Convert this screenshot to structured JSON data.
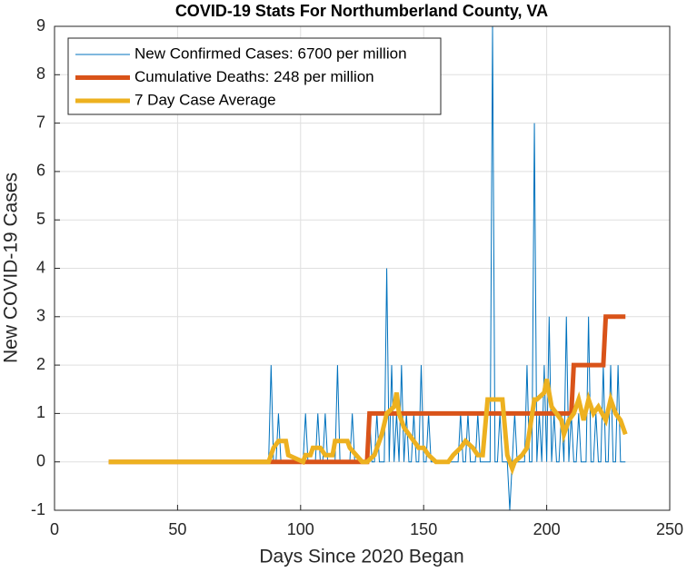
{
  "chart_data": {
    "type": "line",
    "title": "COVID-19 Stats For Northumberland County, VA",
    "x_label": "Days Since 2020 Began",
    "y_label": "New COVID-19 Cases",
    "xlim": [
      0,
      250
    ],
    "xticks": [
      0,
      50,
      100,
      150,
      200,
      250
    ],
    "ylim": [
      -1,
      9
    ],
    "yticks": [
      -1,
      0,
      1,
      2,
      3,
      4,
      5,
      6,
      7,
      8,
      9
    ],
    "grid": true,
    "legend": "upper-left",
    "series": [
      {
        "name": "New Confirmed Cases: 6700 per million",
        "color": "#0072bd",
        "width": 1,
        "x": [
          22,
          87,
          88,
          89,
          90,
          91,
          92,
          101,
          102,
          103,
          106,
          107,
          108,
          109,
          110,
          111,
          114,
          115,
          116,
          120,
          121,
          122,
          127,
          128,
          129,
          130,
          131,
          132,
          134,
          135,
          136,
          137,
          138,
          139,
          140,
          141,
          142,
          143,
          144,
          145,
          146,
          147,
          148,
          149,
          150,
          151,
          152,
          153,
          164,
          165,
          166,
          167,
          168,
          169,
          171,
          172,
          173,
          177,
          178,
          179,
          180,
          181,
          182,
          184,
          185,
          186,
          187,
          188,
          191,
          192,
          193,
          194,
          195,
          196,
          197,
          198,
          199,
          200,
          201,
          202,
          203,
          204,
          205,
          206,
          207,
          208,
          209,
          210,
          211,
          212,
          213,
          214,
          216,
          217,
          218,
          219,
          220,
          221,
          222,
          223,
          224,
          225,
          226,
          227,
          228,
          229,
          230,
          232
        ],
        "values": [
          0,
          0,
          2,
          0,
          0,
          1,
          0,
          0,
          1,
          0,
          0,
          1,
          0,
          0,
          1,
          0,
          0,
          2,
          0,
          0,
          1,
          0,
          0,
          1,
          0,
          0,
          1,
          0,
          0,
          4,
          0,
          2,
          0,
          1,
          0,
          2,
          0,
          1,
          0,
          0,
          1,
          0,
          0,
          2,
          0,
          0,
          1,
          0,
          0,
          1,
          0,
          0,
          1,
          0,
          0,
          1,
          0,
          0,
          9,
          0,
          0,
          1,
          0,
          0,
          -1,
          0,
          1,
          0,
          0,
          2,
          0,
          0,
          7,
          0,
          1,
          0,
          2,
          0,
          3,
          0,
          1,
          0,
          0,
          1,
          0,
          3,
          0,
          1,
          0,
          0,
          1,
          0,
          0,
          3,
          0,
          0,
          1,
          0,
          0,
          2,
          0,
          0,
          2,
          0,
          0,
          2,
          0,
          0
        ]
      },
      {
        "name": "Cumulative Deaths: 248 per million",
        "color": "#d95319",
        "width": 5,
        "x": [
          22,
          127,
          128,
          210,
          211,
          223,
          224,
          232
        ],
        "values": [
          0,
          0,
          1,
          1,
          2,
          2,
          3,
          3
        ]
      },
      {
        "name": "7 Day Case Average",
        "color": "#edb120",
        "width": 5,
        "x": [
          22,
          87,
          89,
          91,
          94,
          95,
          101,
          102,
          104,
          105,
          108,
          110,
          113,
          114,
          119,
          120,
          125,
          127,
          130,
          133,
          135,
          138,
          139,
          140,
          142,
          144,
          146,
          148,
          150,
          152,
          155,
          160,
          162,
          165,
          167,
          170,
          172,
          174,
          176,
          177,
          182,
          184,
          186,
          187,
          190,
          192,
          195,
          196,
          199,
          200,
          202,
          204,
          206,
          207,
          209,
          211,
          213,
          215,
          217,
          219,
          221,
          224,
          226,
          228,
          230,
          232
        ],
        "values": [
          0,
          0,
          0.29,
          0.43,
          0.43,
          0.14,
          0,
          0.14,
          0.14,
          0.29,
          0.29,
          0.14,
          0.14,
          0.43,
          0.43,
          0.29,
          0,
          0,
          0.14,
          0.57,
          1,
          1.14,
          1.43,
          1,
          0.71,
          0.57,
          0.43,
          0.29,
          0.29,
          0.14,
          0,
          0,
          0.14,
          0.29,
          0.43,
          0.29,
          0.14,
          0.14,
          1.29,
          1.29,
          1.29,
          0.14,
          -0.14,
          0,
          0.14,
          0.29,
          1.29,
          1.29,
          1.43,
          1.71,
          1.14,
          1,
          0.86,
          0.57,
          0.86,
          1,
          1.29,
          0.86,
          1.29,
          1,
          1.14,
          0.86,
          1.29,
          1,
          0.86,
          0.57
        ]
      }
    ]
  }
}
